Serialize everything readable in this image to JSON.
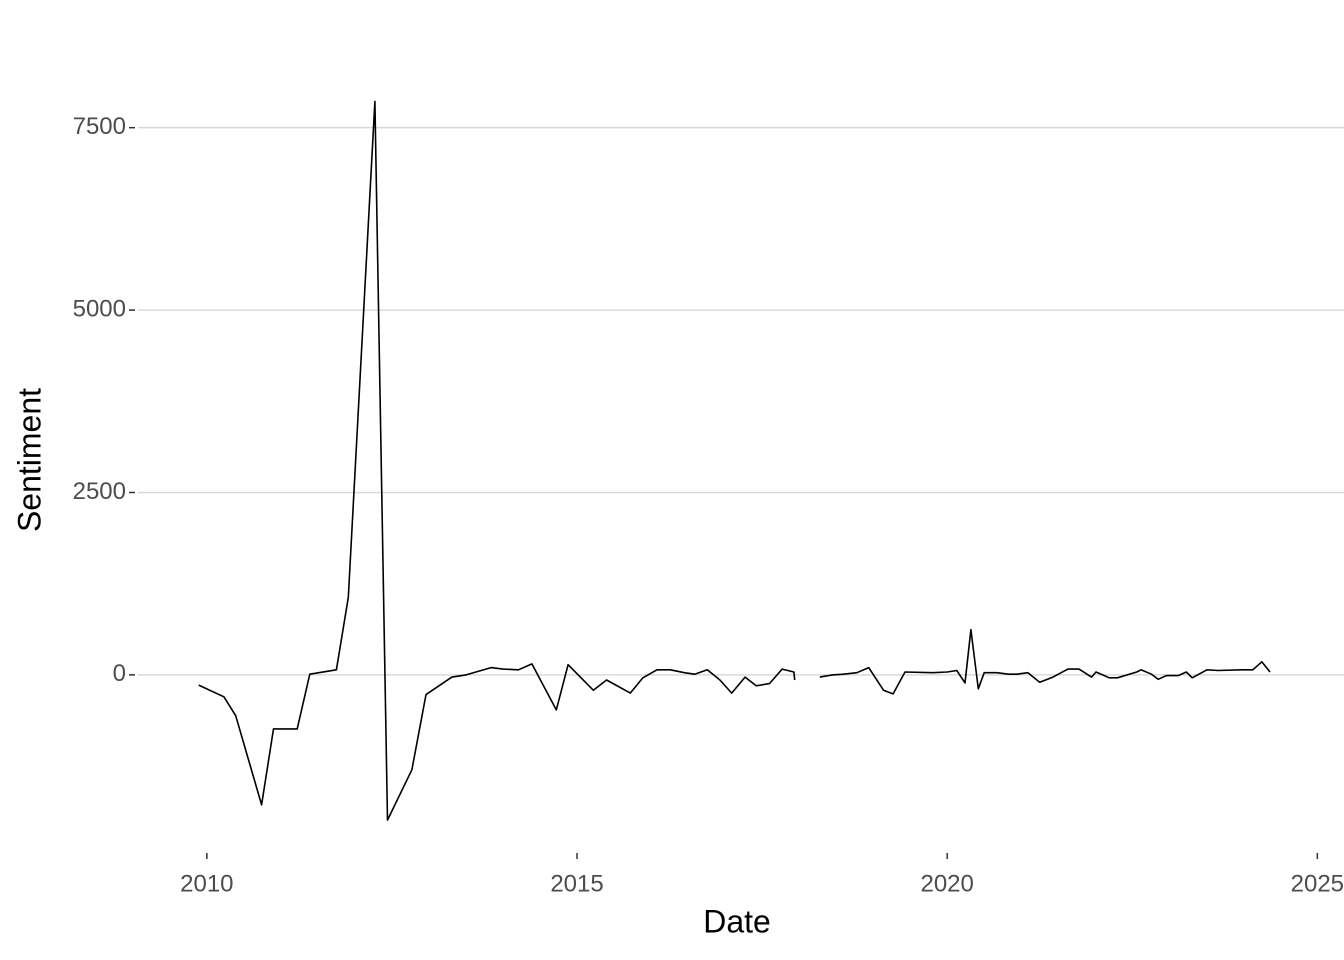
{
  "chart_data": {
    "type": "line",
    "x_label": "Date",
    "y_label": "Sentiment",
    "x": [
      2009.89,
      2010.23,
      2010.39,
      2010.74,
      2010.9,
      2011.22,
      2011.39,
      2011.75,
      2011.91,
      2012.27,
      2012.44,
      2012.77,
      2012.96,
      2013.31,
      2013.5,
      2013.84,
      2014.0,
      2014.21,
      2014.39,
      2014.72,
      2014.88,
      2015.22,
      2015.4,
      2015.72,
      2015.89,
      2016.08,
      2016.26,
      2016.45,
      2016.59,
      2016.76,
      2016.93,
      2017.09,
      2017.27,
      2017.42,
      2017.6,
      2017.77,
      2017.93,
      2017.94,
      2018.1,
      2018.28,
      2018.45,
      2018.6,
      2018.78,
      2018.94,
      2019.14,
      2019.27,
      2019.43,
      2019.8,
      2020.0,
      2020.13,
      2020.24,
      2020.32,
      2020.42,
      2020.5,
      2020.67,
      2020.83,
      2020.94,
      2021.09,
      2021.25,
      2021.43,
      2021.63,
      2021.78,
      2021.95,
      2022.01,
      2022.19,
      2022.3,
      2022.56,
      2022.62,
      2022.76,
      2022.85,
      2022.96,
      2023.12,
      2023.23,
      2023.31,
      2023.51,
      2023.66,
      2023.98,
      2024.13,
      2024.25,
      2024.36
    ],
    "series": [
      {
        "color": "#000000",
        "values": [
          -140,
          -300,
          -560,
          -1780,
          -740,
          -740,
          10,
          70,
          1060,
          7860,
          -1990,
          -1300,
          -270,
          -30,
          0,
          100,
          80,
          70,
          150,
          -480,
          140,
          -210,
          -70,
          -250,
          -40,
          70,
          70,
          30,
          10,
          70,
          -70,
          -250,
          -30,
          -150,
          -120,
          80,
          40,
          -70,
          null,
          -30,
          0,
          10,
          30,
          100,
          -210,
          -260,
          40,
          30,
          40,
          60,
          -110,
          620,
          -190,
          30,
          30,
          10,
          10,
          30,
          -100,
          -30,
          80,
          80,
          -30,
          40,
          -40,
          -40,
          40,
          70,
          10,
          -60,
          -10,
          -10,
          40,
          -40,
          70,
          60,
          70,
          70,
          180,
          40
        ]
      }
    ],
    "xlim": [
      2009.07,
      2025.36
    ],
    "xticks": [
      2010,
      2015,
      2020,
      2025
    ],
    "ylim": [
      -2400,
      8400
    ],
    "yticks": [
      0,
      2500,
      5000,
      7500
    ],
    "grid": true
  }
}
